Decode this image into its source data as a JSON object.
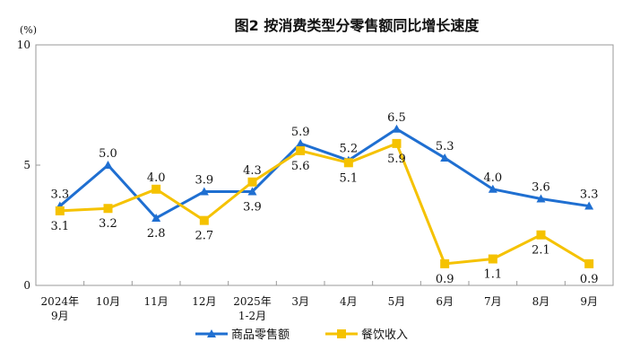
{
  "chart_data": {
    "type": "line",
    "title": "图2  按消费类型分零售额同比增长速度",
    "unit_label": "(%)",
    "categories": [
      [
        "2024年",
        "9月"
      ],
      [
        "10月"
      ],
      [
        "11月"
      ],
      [
        "12月"
      ],
      [
        "2025年",
        "1-2月"
      ],
      [
        "3月"
      ],
      [
        "4月"
      ],
      [
        "5月"
      ],
      [
        "6月"
      ],
      [
        "7月"
      ],
      [
        "8月"
      ],
      [
        "9月"
      ]
    ],
    "ylim": [
      0,
      10
    ],
    "yticks": [
      0,
      5,
      10
    ],
    "grid": false,
    "legend_position": "bottom",
    "series": [
      {
        "name": "商品零售额",
        "color": "#1f6fd1",
        "marker": "triangle",
        "values": [
          3.3,
          5.0,
          2.8,
          3.9,
          3.9,
          5.9,
          5.2,
          6.5,
          5.3,
          4.0,
          3.6,
          3.3
        ],
        "labels": [
          "3.3",
          "5.0",
          "2.8",
          "3.9",
          "3.9",
          "5.9",
          "5.2",
          "6.5",
          "5.3",
          "4.0",
          "3.6",
          "3.3"
        ],
        "label_pos": [
          "above",
          "above",
          "below",
          "above",
          "below",
          "above",
          "above",
          "above",
          "above",
          "above",
          "above",
          "above"
        ]
      },
      {
        "name": "餐饮收入",
        "color": "#f5c200",
        "marker": "square",
        "values": [
          3.1,
          3.2,
          4.0,
          2.7,
          4.3,
          5.6,
          5.1,
          5.9,
          0.9,
          1.1,
          2.1,
          0.9
        ],
        "labels": [
          "3.1",
          "3.2",
          "4.0",
          "2.7",
          "4.3",
          "5.6",
          "5.1",
          "5.9",
          "0.9",
          "1.1",
          "2.1",
          "0.9"
        ],
        "label_pos": [
          "below",
          "below",
          "above",
          "below",
          "above",
          "below",
          "below",
          "below",
          "below",
          "below",
          "below",
          "below"
        ]
      }
    ]
  }
}
